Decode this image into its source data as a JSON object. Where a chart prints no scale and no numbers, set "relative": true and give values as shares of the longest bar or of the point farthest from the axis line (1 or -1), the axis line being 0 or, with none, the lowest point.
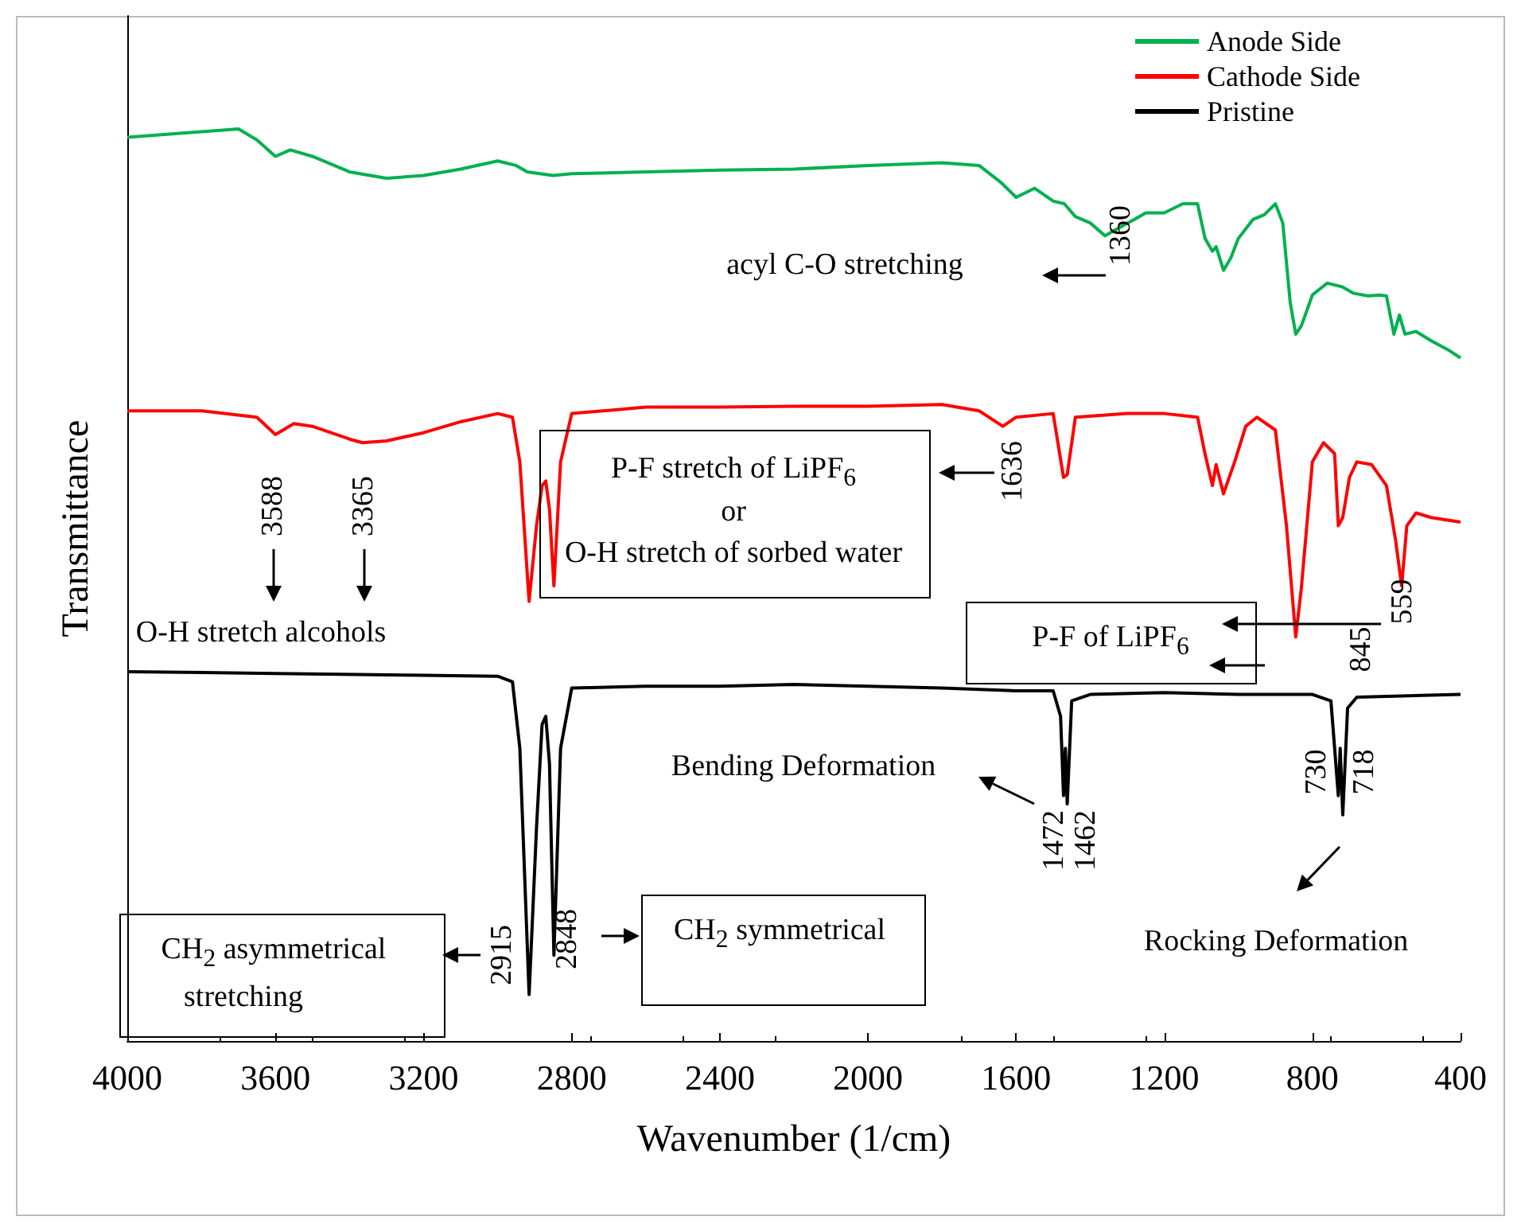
{
  "chart_data": {
    "type": "line",
    "relative": true,
    "xlabel": "Wavenumber (1/cm)",
    "ylabel": "Transmittance",
    "xlim": [
      4000,
      400
    ],
    "xticks": [
      4000,
      3600,
      3200,
      2800,
      2400,
      2000,
      1600,
      1200,
      800,
      400
    ],
    "legend": "top right",
    "marker": "none",
    "series": [
      {
        "name": "Anode Side",
        "color": "#00b050",
        "x": [
          4000,
          3700,
          3650,
          3600,
          3560,
          3500,
          3400,
          3300,
          3200,
          3100,
          3000,
          2950,
          2920,
          2850,
          2800,
          2600,
          2400,
          2200,
          2000,
          1800,
          1700,
          1640,
          1600,
          1550,
          1500,
          1470,
          1440,
          1400,
          1360,
          1330,
          1280,
          1250,
          1200,
          1150,
          1110,
          1090,
          1070,
          1060,
          1040,
          1020,
          1000,
          960,
          930,
          900,
          880,
          860,
          845,
          830,
          800,
          760,
          720,
          690,
          650,
          620,
          600,
          580,
          565,
          550,
          520,
          480,
          430,
          400
        ],
        "values": [
          0.991,
          1.0,
          0.988,
          0.97,
          0.977,
          0.97,
          0.953,
          0.946,
          0.949,
          0.956,
          0.965,
          0.96,
          0.953,
          0.949,
          0.951,
          0.953,
          0.955,
          0.956,
          0.96,
          0.963,
          0.96,
          0.941,
          0.925,
          0.935,
          0.921,
          0.918,
          0.904,
          0.897,
          0.883,
          0.89,
          0.901,
          0.908,
          0.908,
          0.918,
          0.918,
          0.88,
          0.866,
          0.871,
          0.845,
          0.859,
          0.88,
          0.901,
          0.906,
          0.918,
          0.897,
          0.81,
          0.775,
          0.784,
          0.818,
          0.831,
          0.827,
          0.82,
          0.817,
          0.818,
          0.817,
          0.775,
          0.796,
          0.775,
          0.778,
          0.768,
          0.757,
          0.749
        ]
      },
      {
        "name": "Cathode Side",
        "color": "#ff0000",
        "x": [
          4000,
          3800,
          3650,
          3600,
          3550,
          3500,
          3400,
          3365,
          3300,
          3200,
          3100,
          3000,
          2960,
          2940,
          2915,
          2895,
          2880,
          2870,
          2860,
          2848,
          2830,
          2800,
          2600,
          2400,
          2200,
          2000,
          1800,
          1700,
          1636,
          1600,
          1500,
          1472,
          1462,
          1440,
          1300,
          1200,
          1110,
          1090,
          1070,
          1060,
          1040,
          1010,
          980,
          950,
          900,
          870,
          845,
          830,
          800,
          770,
          740,
          730,
          718,
          700,
          680,
          640,
          600,
          575,
          559,
          545,
          520,
          480,
          400
        ],
        "values": [
          0.691,
          0.691,
          0.684,
          0.665,
          0.677,
          0.674,
          0.66,
          0.656,
          0.658,
          0.667,
          0.679,
          0.688,
          0.684,
          0.635,
          0.482,
          0.565,
          0.609,
          0.614,
          0.583,
          0.499,
          0.635,
          0.688,
          0.695,
          0.695,
          0.696,
          0.696,
          0.698,
          0.691,
          0.674,
          0.684,
          0.688,
          0.618,
          0.621,
          0.684,
          0.688,
          0.688,
          0.684,
          0.644,
          0.609,
          0.632,
          0.6,
          0.635,
          0.674,
          0.684,
          0.67,
          0.565,
          0.443,
          0.496,
          0.635,
          0.656,
          0.644,
          0.565,
          0.574,
          0.618,
          0.635,
          0.632,
          0.609,
          0.548,
          0.499,
          0.565,
          0.579,
          0.574,
          0.569
        ]
      },
      {
        "name": "Pristine",
        "color": "#000000",
        "x": [
          4000,
          3600,
          3200,
          3000,
          2960,
          2940,
          2915,
          2895,
          2880,
          2870,
          2860,
          2848,
          2830,
          2800,
          2600,
          2400,
          2200,
          2000,
          1800,
          1600,
          1500,
          1480,
          1472,
          1467,
          1462,
          1450,
          1400,
          1200,
          1000,
          800,
          750,
          730,
          725,
          718,
          705,
          680,
          400
        ],
        "values": [
          0.405,
          0.403,
          0.401,
          0.4,
          0.394,
          0.321,
          0.051,
          0.234,
          0.347,
          0.356,
          0.304,
          0.094,
          0.321,
          0.387,
          0.389,
          0.389,
          0.391,
          0.389,
          0.387,
          0.384,
          0.384,
          0.356,
          0.269,
          0.321,
          0.26,
          0.373,
          0.38,
          0.382,
          0.38,
          0.38,
          0.373,
          0.269,
          0.321,
          0.248,
          0.365,
          0.377,
          0.38
        ]
      }
    ],
    "annotations": [
      "acyl C-O stretching",
      "1360",
      "3588",
      "3365",
      "O-H stretch alcohols",
      "P-F stretch of LiPF$_{6}$",
      "or",
      "O-H stretch of sorbed water",
      "1636",
      "P-F of LiPF$_{6}$",
      "845",
      "559",
      "Bending Deformation",
      "1472",
      "1462",
      "Rocking Deformation",
      "730",
      "718",
      "2915",
      "CH$_{2}$ asymmetrical",
      "stretching",
      "2848",
      "CH$_{2}$ symmetrical"
    ]
  }
}
